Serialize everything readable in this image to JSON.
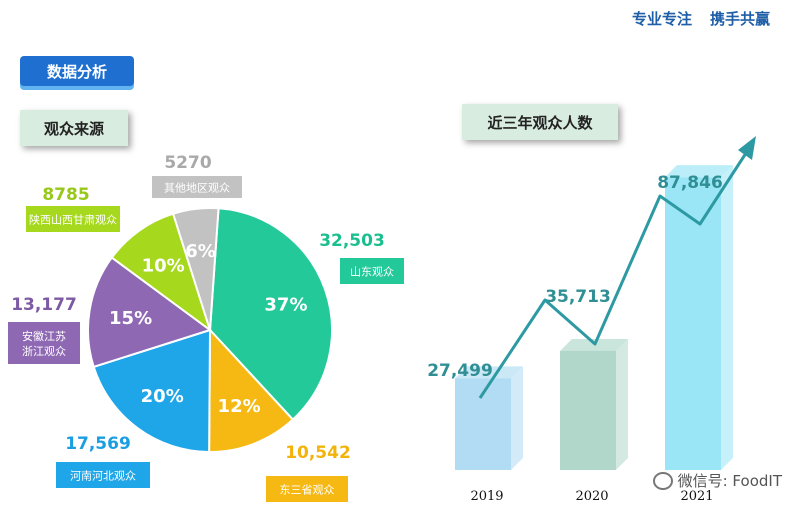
{
  "header": {
    "slogan_1": "专业专注",
    "slogan_2": "携手共赢"
  },
  "section_title": "数据分析",
  "source_title": "观众来源",
  "trend_title": "近三年观众人数",
  "watermark": "微信号: FoodIT",
  "colors": {
    "accent": "#1e6fd0",
    "box_bg": "#d9ece0",
    "line": "#2d9aa3"
  },
  "chart_data": [
    {
      "type": "pie",
      "title": "",
      "slices": [
        {
          "label": "山东观众",
          "value": 32503,
          "value_text": "32,503",
          "pct": "37%",
          "color": "#24c99a",
          "value_color": "#1bbf8f"
        },
        {
          "label": "东三省观众",
          "value": 10542,
          "value_text": "10,542",
          "pct": "12%",
          "color": "#f6b914",
          "value_color": "#f2b40c"
        },
        {
          "label": "河南河北观众",
          "value": 17569,
          "value_text": "17,569",
          "pct": "20%",
          "color": "#1fa6e9",
          "value_color": "#1a9ee0"
        },
        {
          "label": "安徽江苏\n浙江观众",
          "value": 13177,
          "value_text": "13,177",
          "pct": "15%",
          "color": "#8e68b3",
          "value_color": "#7d5aa3"
        },
        {
          "label": "陕西山西甘肃观众",
          "value": 8785,
          "value_text": "8785",
          "pct": "10%",
          "color": "#a6d81d",
          "value_color": "#98c819"
        },
        {
          "label": "其他地区观众",
          "value": 5270,
          "value_text": "5270",
          "pct": "6%",
          "color": "#c2c2c2",
          "value_color": "#a9a9a9"
        }
      ]
    },
    {
      "type": "bar",
      "title": "",
      "categories": [
        "2019",
        "2020",
        "2021"
      ],
      "values": [
        27499,
        35713,
        87846
      ],
      "value_labels": [
        "27,499",
        "35,713",
        "87,846"
      ],
      "bar_colors": [
        "#a8d8f2",
        "#a7d3c3",
        "#8fe3f5"
      ],
      "trend_line": true
    }
  ]
}
